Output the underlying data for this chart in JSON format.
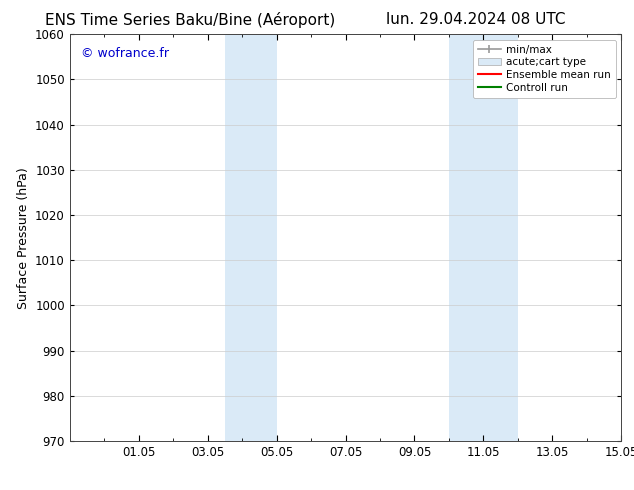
{
  "title_left": "ENS Time Series Baku/Bine (Aéroport)",
  "title_right": "lun. 29.04.2024 08 UTC",
  "ylabel": "Surface Pressure (hPa)",
  "ylim": [
    970,
    1060
  ],
  "yticks": [
    970,
    980,
    990,
    1000,
    1010,
    1020,
    1030,
    1040,
    1050,
    1060
  ],
  "xtick_labels": [
    "01.05",
    "03.05",
    "05.05",
    "07.05",
    "09.05",
    "11.05",
    "13.05",
    "15.05"
  ],
  "xtick_positions": [
    2,
    4,
    6,
    8,
    10,
    12,
    14,
    16
  ],
  "xlim": [
    0,
    16
  ],
  "shaded_regions": [
    {
      "x_start": 4.5,
      "x_end": 6.0,
      "color": "#daeaf7"
    },
    {
      "x_start": 11.0,
      "x_end": 13.0,
      "color": "#daeaf7"
    }
  ],
  "watermark": "© wofrance.fr",
  "watermark_color": "#0000cc",
  "background_color": "#ffffff",
  "legend_entries": [
    {
      "label": "min/max",
      "color": "#999999"
    },
    {
      "label": "acute;cart type",
      "color": "#daeaf7"
    },
    {
      "label": "Ensemble mean run",
      "color": "#ff0000"
    },
    {
      "label": "Controll run",
      "color": "#008000"
    }
  ],
  "grid_color": "#cccccc",
  "title_fontsize": 11,
  "axis_label_fontsize": 9,
  "tick_fontsize": 8.5
}
